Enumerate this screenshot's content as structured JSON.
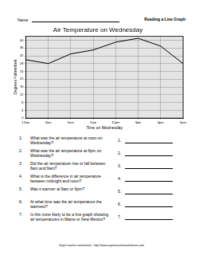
{
  "header": {
    "name_label": "Name",
    "title": "Reading a Line Graph"
  },
  "chart_data": {
    "type": "line",
    "title": "Air Temperature on Wednesday",
    "x_label": "Time on Wednesday",
    "y_label": "Degrees Fahrenheit",
    "categories": [
      "12am",
      "3am",
      "6am",
      "9am",
      "12pm",
      "3pm",
      "6pm",
      "9pm"
    ],
    "values": [
      30,
      28,
      33,
      35,
      39,
      41,
      37,
      28
    ],
    "color": "#000000",
    "marker": "none",
    "ylim": [
      0,
      42
    ],
    "yticks": [
      0,
      4,
      8,
      12,
      16,
      20,
      24,
      28,
      32,
      36,
      40
    ],
    "grid": true
  },
  "questions": [
    {
      "number": "1.",
      "text": "What was the air temperature at noon on Wednesday?"
    },
    {
      "number": "2.",
      "text": "What was the air temperature at 6pm on Wednesday?"
    },
    {
      "number": "3.",
      "text": "Did the air temperature rise or fall between 6am and 9am?"
    },
    {
      "number": "4.",
      "text": "What is the difference in air temperature between midnight and noon?"
    },
    {
      "number": "5.",
      "text": "Was it warmer at 9am or 6pm?"
    },
    {
      "number": "6.",
      "text": "At what time was the air temperature the warmest?"
    },
    {
      "number": "7.",
      "text": "Is this more likely to be a line graph showing air temperatures in Maine or New Mexico?"
    }
  ],
  "footer": "Super teacher worksheets - http://www.superteacherworksheets.com"
}
